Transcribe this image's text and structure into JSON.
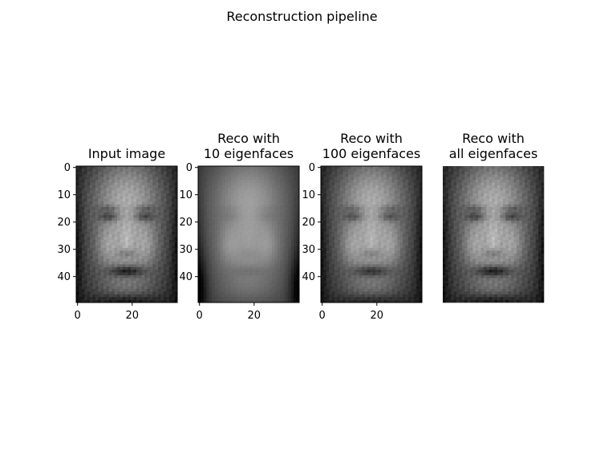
{
  "figure": {
    "title": "Reconstruction pipeline"
  },
  "chart_data": {
    "type": "heatmap",
    "colormap": "gray",
    "grid": false,
    "panels": [
      {
        "name": "input",
        "title_lines": [
          "Input image"
        ],
        "image_shape": [
          50,
          37
        ],
        "xlim": [
          0,
          37
        ],
        "ylim": [
          50,
          0
        ],
        "show_axes": true,
        "xticks": [
          0,
          20
        ],
        "yticks": [
          0,
          10,
          20,
          30,
          40
        ],
        "detail": 1.0
      },
      {
        "name": "reco-10",
        "title_lines": [
          "Reco with",
          "10 eigenfaces"
        ],
        "image_shape": [
          50,
          37
        ],
        "xlim": [
          0,
          37
        ],
        "ylim": [
          50,
          0
        ],
        "show_axes": true,
        "xticks": [
          0,
          20
        ],
        "yticks": [
          0,
          10,
          20,
          30,
          40
        ],
        "detail": 0.25
      },
      {
        "name": "reco-100",
        "title_lines": [
          "Reco with",
          "100 eigenfaces"
        ],
        "image_shape": [
          50,
          37
        ],
        "xlim": [
          0,
          37
        ],
        "ylim": [
          50,
          0
        ],
        "show_axes": true,
        "xticks": [
          0,
          20
        ],
        "yticks": [
          0,
          10,
          20,
          30,
          40
        ],
        "detail": 0.8
      },
      {
        "name": "reco-all",
        "title_lines": [
          "Reco with",
          "all eigenfaces"
        ],
        "image_shape": [
          50,
          37
        ],
        "xlim": [
          0,
          37
        ],
        "ylim": [
          50,
          0
        ],
        "show_axes": false,
        "xticks": [],
        "yticks": [],
        "detail": 1.0
      }
    ]
  }
}
